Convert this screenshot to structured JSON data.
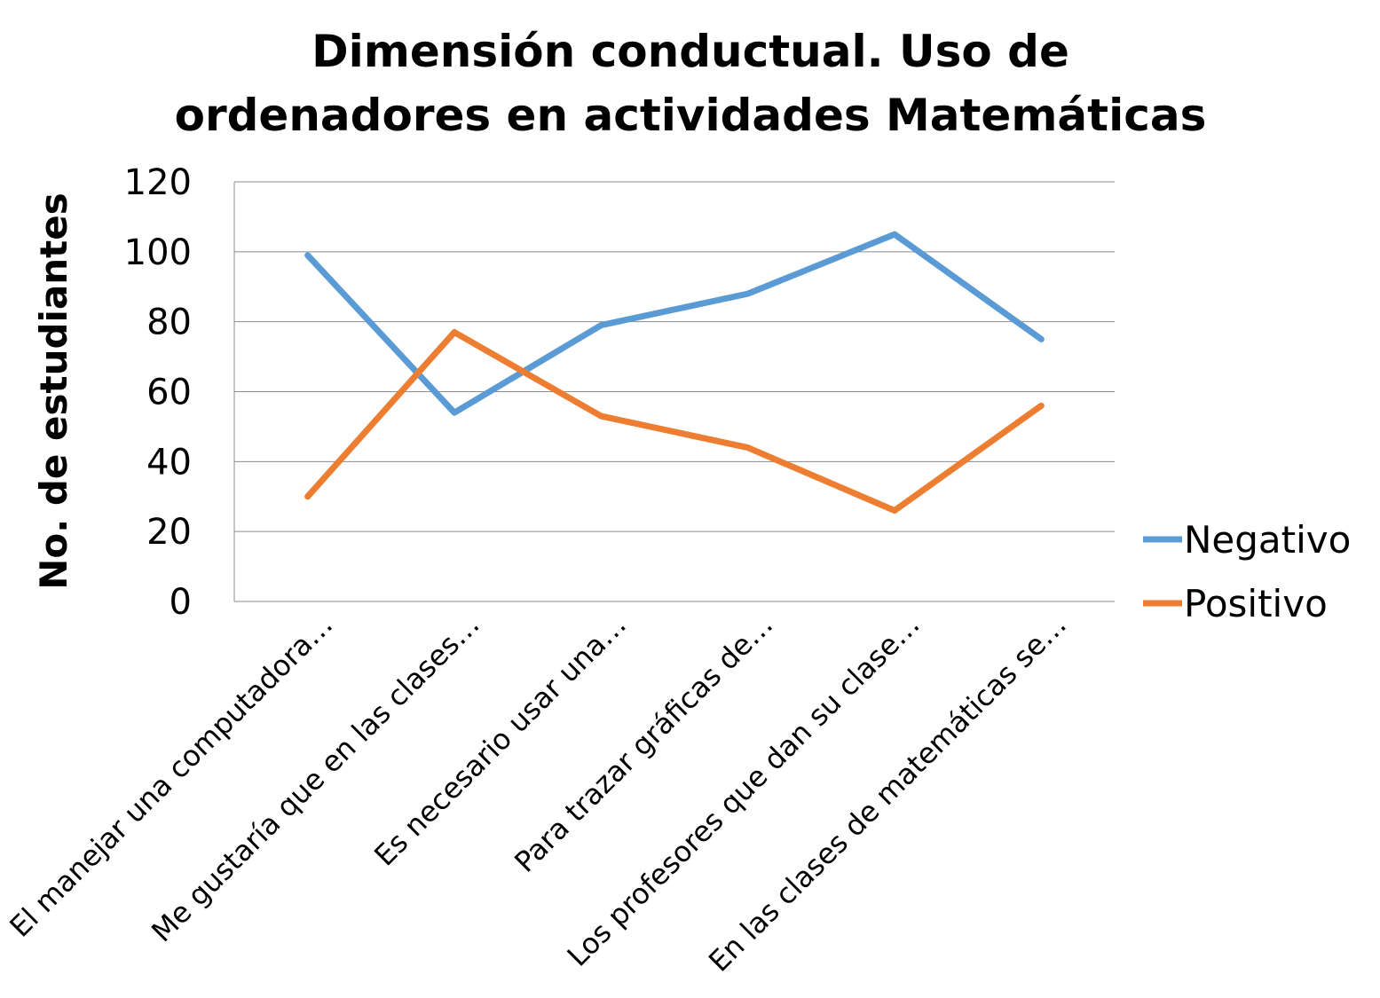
{
  "chart_data": {
    "type": "line",
    "title_lines": [
      "Dimensión conductual. Uso de",
      "ordenadores en actividades Matemáticas"
    ],
    "xlabel": "",
    "ylabel": "No. de estudiantes",
    "ylim": [
      0,
      120
    ],
    "yticks": [
      0,
      20,
      40,
      60,
      80,
      100,
      120
    ],
    "grid": true,
    "legend_position": "right",
    "categories": [
      "El manejar una computadora…",
      "Me gustaría que en las clases…",
      "Es necesario usar una…",
      "Para trazar gráficas de…",
      "Los profesores que dan su clase…",
      "En las clases de matemáticas se…"
    ],
    "series": [
      {
        "name": "Negativo",
        "color": "#5b9bd5",
        "values": [
          99,
          54,
          79,
          88,
          105,
          75
        ]
      },
      {
        "name": "Positivo",
        "color": "#ed7d31",
        "values": [
          30,
          77,
          53,
          44,
          26,
          56
        ]
      }
    ]
  }
}
